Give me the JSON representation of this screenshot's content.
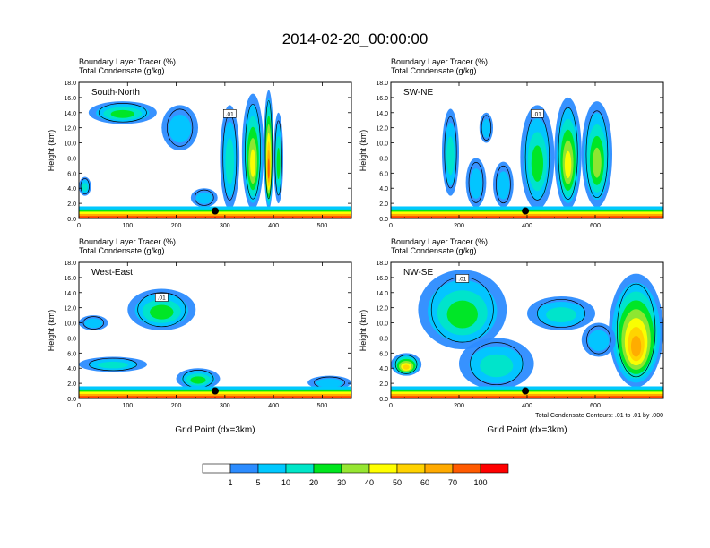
{
  "title": "2014-02-20_00:00:00",
  "panel_header": {
    "line1": "Boundary Layer Tracer    (%)",
    "line2": "Total Condensate    (g/kg)"
  },
  "ylabel": "Height (km)",
  "xlabel": "Grid Point (dx=3km)",
  "contour_note": "Total Condensate Contours: .01 to .01 by .000",
  "contour_label": ".01",
  "colorbar": {
    "colors": [
      "#ffffff",
      "#2c8cff",
      "#00c8ff",
      "#00e6c8",
      "#00e61e",
      "#96e632",
      "#ffff00",
      "#ffd200",
      "#ffaa00",
      "#ff5a00",
      "#ff0000"
    ],
    "labels": [
      "1",
      "5",
      "10",
      "20",
      "30",
      "40",
      "50",
      "60",
      "70",
      "100"
    ]
  },
  "chart_data": [
    {
      "type": "heatmap",
      "name": "South-North",
      "xlim": [
        0,
        560
      ],
      "ylim": [
        0,
        18
      ],
      "xticks": [
        "0",
        "100",
        "200",
        "300",
        "400",
        "500"
      ],
      "yticks": [
        "0.0",
        "2.0",
        "4.0",
        "6.0",
        "8.0",
        "10.0",
        "12.0",
        "14.0",
        "16.0",
        "18.0"
      ],
      "marker": {
        "x": 280,
        "y": 1.0
      },
      "plumes": [
        {
          "x": [
            290,
            330
          ],
          "y": [
            1.2,
            15.0
          ],
          "level": 3
        },
        {
          "x": [
            335,
            380
          ],
          "y": [
            1.2,
            16.5
          ],
          "level": 6
        },
        {
          "x": [
            380,
            400
          ],
          "y": [
            1.2,
            17.0
          ],
          "level": 9
        },
        {
          "x": [
            400,
            420
          ],
          "y": [
            2.0,
            14.0
          ],
          "level": 4
        },
        {
          "x": [
            230,
            285
          ],
          "y": [
            1.5,
            4.0
          ],
          "level": 2
        },
        {
          "x": [
            20,
            160
          ],
          "y": [
            12.5,
            15.5
          ],
          "level": 4
        },
        {
          "x": [
            170,
            245
          ],
          "y": [
            9.0,
            15.0
          ],
          "level": 2
        },
        {
          "x": [
            0,
            25
          ],
          "y": [
            3.0,
            5.5
          ],
          "level": 3
        }
      ]
    },
    {
      "type": "heatmap",
      "name": "SW-NE",
      "xlim": [
        0,
        800
      ],
      "ylim": [
        0,
        18
      ],
      "xticks": [
        "0",
        "200",
        "400",
        "600"
      ],
      "yticks": [
        "0.0",
        "2.0",
        "4.0",
        "6.0",
        "8.0",
        "10.0",
        "12.0",
        "14.0",
        "16.0",
        "18.0"
      ],
      "marker": {
        "x": 395,
        "y": 1.0
      },
      "plumes": [
        {
          "x": [
            380,
            480
          ],
          "y": [
            1.2,
            15.0
          ],
          "level": 4
        },
        {
          "x": [
            480,
            560
          ],
          "y": [
            1.2,
            16.0
          ],
          "level": 6
        },
        {
          "x": [
            560,
            650
          ],
          "y": [
            1.5,
            15.5
          ],
          "level": 5
        },
        {
          "x": [
            150,
            200
          ],
          "y": [
            3.0,
            14.5
          ],
          "level": 3
        },
        {
          "x": [
            220,
            280
          ],
          "y": [
            1.5,
            8.0
          ],
          "level": 2
        },
        {
          "x": [
            300,
            360
          ],
          "y": [
            1.5,
            7.5
          ],
          "level": 2
        },
        {
          "x": [
            260,
            300
          ],
          "y": [
            10.0,
            14.0
          ],
          "level": 2
        }
      ]
    },
    {
      "type": "heatmap",
      "name": "West-East",
      "xlim": [
        0,
        560
      ],
      "ylim": [
        0,
        18
      ],
      "xticks": [
        "0",
        "100",
        "200",
        "300",
        "400",
        "500"
      ],
      "yticks": [
        "0.0",
        "2.0",
        "4.0",
        "6.0",
        "8.0",
        "10.0",
        "12.0",
        "14.0",
        "16.0",
        "18.0"
      ],
      "marker": {
        "x": 280,
        "y": 1.0
      },
      "plumes": [
        {
          "x": [
            100,
            240
          ],
          "y": [
            9.0,
            14.5
          ],
          "level": 4
        },
        {
          "x": [
            0,
            140
          ],
          "y": [
            3.5,
            5.5
          ],
          "level": 3
        },
        {
          "x": [
            200,
            290
          ],
          "y": [
            1.2,
            4.0
          ],
          "level": 4
        },
        {
          "x": [
            0,
            60
          ],
          "y": [
            9.0,
            11.0
          ],
          "level": 2
        },
        {
          "x": [
            470,
            560
          ],
          "y": [
            1.2,
            3.0
          ],
          "level": 2
        }
      ]
    },
    {
      "type": "heatmap",
      "name": "NW-SE",
      "xlim": [
        0,
        800
      ],
      "ylim": [
        0,
        18
      ],
      "xticks": [
        "0",
        "200",
        "400",
        "600"
      ],
      "yticks": [
        "0.0",
        "2.0",
        "4.0",
        "6.0",
        "8.0",
        "10.0",
        "12.0",
        "14.0",
        "16.0",
        "18.0"
      ],
      "marker": {
        "x": 395,
        "y": 1.0
      },
      "plumes": [
        {
          "x": [
            80,
            340
          ],
          "y": [
            6.5,
            17.0
          ],
          "level": 4
        },
        {
          "x": [
            200,
            420
          ],
          "y": [
            1.2,
            8.0
          ],
          "level": 3
        },
        {
          "x": [
            640,
            800
          ],
          "y": [
            1.5,
            16.5
          ],
          "level": 8
        },
        {
          "x": [
            400,
            600
          ],
          "y": [
            9.0,
            13.5
          ],
          "level": 3
        },
        {
          "x": [
            0,
            90
          ],
          "y": [
            3.0,
            6.0
          ],
          "level": 7
        },
        {
          "x": [
            560,
            660
          ],
          "y": [
            5.5,
            10.0
          ],
          "level": 2
        }
      ]
    }
  ]
}
